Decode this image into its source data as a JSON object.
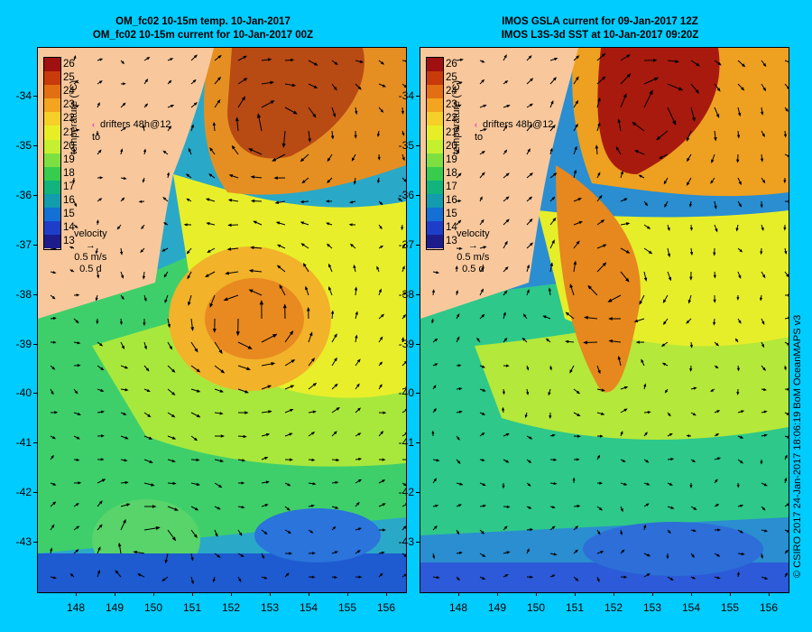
{
  "panels": [
    {
      "title1": "OM_fc02 10-15m temp. 10-Jan-2017",
      "title2": "OM_fc02 10-15m current for 10-Jan-2017 00Z"
    },
    {
      "title1": "IMOS GSLA current for 09-Jan-2017 12Z",
      "title2": "IMOS L3S-3d SST at 10-Jan-2017 09:20Z"
    }
  ],
  "colorbar": {
    "title": "temperature (°C)",
    "labels": [
      "26",
      "25",
      "24",
      "23",
      "22",
      "21",
      "20",
      "19",
      "18",
      "17",
      "16",
      "15",
      "14",
      "13"
    ],
    "colors": [
      "#a01010",
      "#c83a0a",
      "#e27012",
      "#f4a41e",
      "#f6d028",
      "#e8ee26",
      "#c4f030",
      "#7ee040",
      "#38cc4e",
      "#10b47c",
      "#129cae",
      "#1470d4",
      "#1f3ec8",
      "#1c1c8c"
    ]
  },
  "drifters": {
    "line1": "drifters 48h@12",
    "line2": "to"
  },
  "velocity": {
    "label": "velocity",
    "speed": "0.5 m/s",
    "duration": "0.5 d"
  },
  "axes": {
    "lat_labels": [
      "-34",
      "-35",
      "-36",
      "-37",
      "-38",
      "-39",
      "-40",
      "-41",
      "-42",
      "-43"
    ],
    "lon_labels": [
      "148",
      "149",
      "150",
      "151",
      "152",
      "153",
      "154",
      "155",
      "156"
    ]
  },
  "credit": "© CSIRO 2017   24-Jan-2017 18:06:19 BoM OceanMAPS v3",
  "colors": {
    "background": "#00ccff",
    "land": "#f8c89c",
    "arrow": "#000000"
  },
  "icons": {
    "drifter_marker": "magenta-chevron-icon",
    "velocity_scale": "arrow-icon"
  }
}
